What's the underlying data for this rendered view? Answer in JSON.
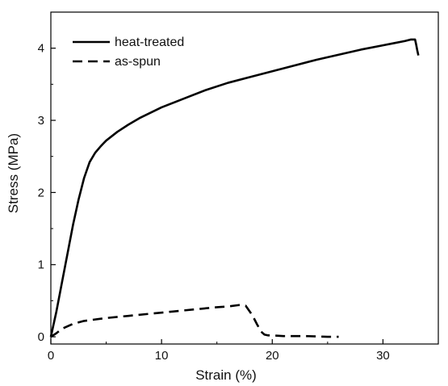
{
  "chart_data": {
    "type": "line",
    "title": "",
    "xlabel": "Strain (%)",
    "ylabel": "Stress (MPa)",
    "xlim": [
      0,
      35
    ],
    "ylim": [
      -0.1,
      4.5
    ],
    "x_ticks": [
      0,
      10,
      20,
      30
    ],
    "y_ticks": [
      0,
      1,
      2,
      3,
      4
    ],
    "grid": false,
    "legend": "top-left",
    "series": [
      {
        "name": "heat-treated",
        "style": "solid",
        "color": "#000000",
        "x": [
          0,
          0.5,
          1,
          1.5,
          2,
          2.5,
          3,
          3.5,
          4,
          4.5,
          5,
          6,
          7,
          8,
          10,
          12,
          14,
          16,
          18,
          20,
          22,
          24,
          26,
          28,
          30,
          31,
          32,
          32.5,
          32.9,
          33.0,
          33.1,
          33.2
        ],
        "y": [
          0,
          0.35,
          0.75,
          1.15,
          1.55,
          1.9,
          2.2,
          2.42,
          2.55,
          2.64,
          2.72,
          2.84,
          2.94,
          3.03,
          3.18,
          3.3,
          3.42,
          3.52,
          3.6,
          3.68,
          3.76,
          3.84,
          3.91,
          3.98,
          4.04,
          4.07,
          4.1,
          4.12,
          4.12,
          4.05,
          3.97,
          3.9
        ]
      },
      {
        "name": "as-spun",
        "style": "dashed",
        "color": "#000000",
        "x": [
          0,
          0.5,
          1,
          2,
          3,
          5,
          7,
          9,
          11,
          13,
          15,
          16,
          17,
          17.6,
          18.2,
          18.6,
          19.0,
          19.3,
          19.6,
          20,
          21,
          23,
          25,
          26
        ],
        "y": [
          0,
          0.05,
          0.11,
          0.18,
          0.22,
          0.26,
          0.29,
          0.32,
          0.35,
          0.38,
          0.41,
          0.42,
          0.44,
          0.43,
          0.3,
          0.18,
          0.07,
          0.03,
          0.02,
          0.02,
          0.01,
          0.01,
          0.0,
          0.0
        ]
      }
    ]
  }
}
